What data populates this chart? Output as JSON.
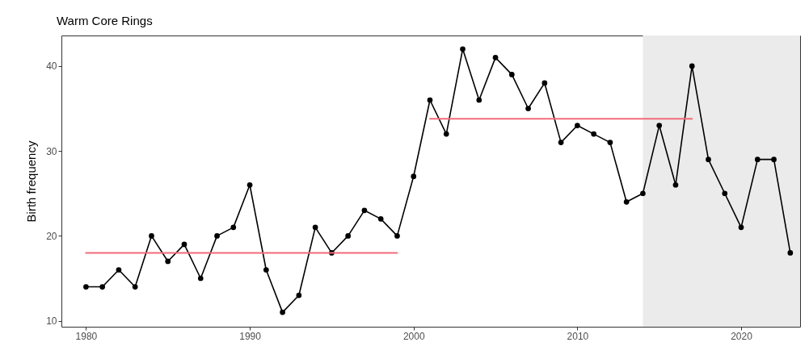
{
  "chart_data": {
    "type": "line",
    "title": "Warm Core Rings",
    "ylabel": "Birth frequency",
    "x": [
      1980,
      1981,
      1982,
      1983,
      1984,
      1985,
      1986,
      1987,
      1988,
      1989,
      1990,
      1991,
      1992,
      1993,
      1994,
      1995,
      1996,
      1997,
      1998,
      1999,
      2000,
      2001,
      2002,
      2003,
      2004,
      2005,
      2006,
      2007,
      2008,
      2009,
      2010,
      2011,
      2012,
      2013,
      2014,
      2015,
      2016,
      2017,
      2018,
      2019,
      2020,
      2021,
      2022,
      2023
    ],
    "series": [
      {
        "color": "#000000",
        "marker": "circle",
        "values": [
          14,
          14,
          16,
          14,
          20,
          17,
          19,
          15,
          20,
          21,
          26,
          16,
          11,
          13,
          21,
          18,
          20,
          23,
          22,
          20,
          27,
          36,
          32,
          42,
          36,
          41,
          39,
          35,
          38,
          31,
          33,
          32,
          31,
          24,
          25,
          33,
          26,
          40,
          29,
          25,
          21,
          29,
          29,
          18
        ]
      },
      {
        "color": "#f26b7a",
        "marker": "none",
        "x": [
          1980,
          1999
        ],
        "values": [
          18,
          18
        ]
      },
      {
        "color": "#f26b7a",
        "marker": "none",
        "x": [
          2001,
          2017
        ],
        "values": [
          33.8,
          33.8
        ]
      }
    ],
    "bands": [
      {
        "axis": "x",
        "from": 2014,
        "to": 2023.6,
        "color": "#ebebeb"
      }
    ],
    "xlim": [
      1978.5,
      2023.6
    ],
    "xticks": [
      1980,
      1990,
      2000,
      2010,
      2020
    ],
    "ylim": [
      9.3,
      43.6
    ],
    "yticks": [
      10,
      20,
      30,
      40
    ],
    "grid": false
  }
}
